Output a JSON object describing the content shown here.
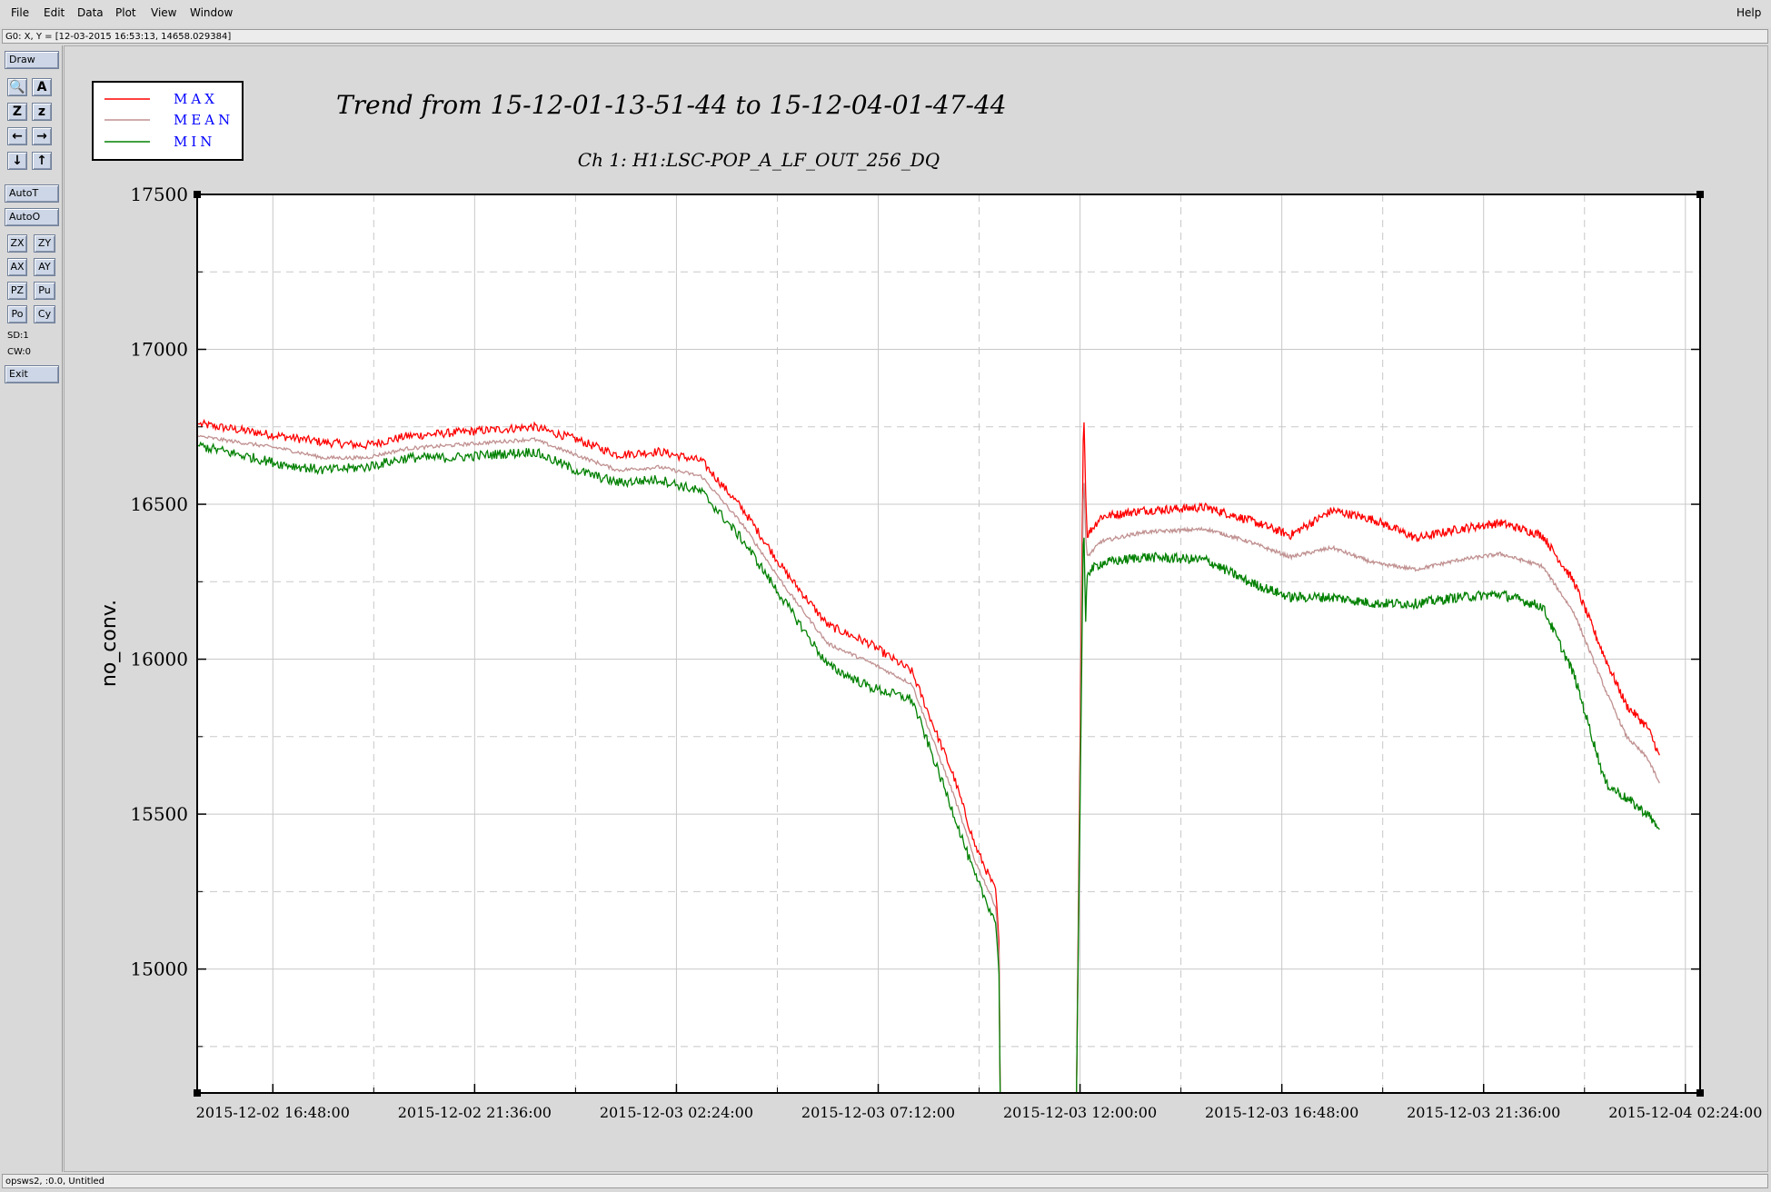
{
  "menu": {
    "left": [
      "File",
      "Edit",
      "Data",
      "Plot",
      "View",
      "Window"
    ],
    "help": "Help"
  },
  "coord_readout": "G0: X, Y = [12-03-2015 16:53:13, 14658.029384]",
  "toolbar": {
    "draw": "Draw",
    "icon_buttons": [
      {
        "name": "zoom-icon",
        "glyph": "🔍"
      },
      {
        "name": "text-tool-icon",
        "glyph": "A"
      },
      {
        "name": "zoom-in-icon",
        "glyph": "Z"
      },
      {
        "name": "zoom-out-icon",
        "glyph": "z"
      },
      {
        "name": "arrow-left-icon",
        "glyph": "←"
      },
      {
        "name": "arrow-right-icon",
        "glyph": "→"
      },
      {
        "name": "arrow-down-icon",
        "glyph": "↓"
      },
      {
        "name": "arrow-up-icon",
        "glyph": "↑"
      }
    ],
    "autot": "AutoT",
    "autoo": "AutoO",
    "small_buttons": [
      "ZX",
      "ZY",
      "AX",
      "AY",
      "PZ",
      "Pu",
      "Po",
      "Cy"
    ],
    "sd": "SD:1",
    "cw": "CW:0",
    "exit": "Exit"
  },
  "status": "opsws2, :0.0, Untitled",
  "chart_data": {
    "type": "line",
    "title": "Trend from 15-12-01-13-51-44 to 15-12-04-01-47-44",
    "subtitle": "Ch 1: H1:LSC-POP_A_LF_OUT_256_DQ",
    "ylabel": "no_conv.",
    "xlabel": "",
    "ylim": [
      14600,
      17500
    ],
    "yticks": [
      15000,
      15500,
      16000,
      16500,
      17000,
      17500
    ],
    "xlim": [
      "2015-12-02 15:00:00",
      "2015-12-04 02:45:00"
    ],
    "xticks": [
      "2015-12-02 16:48:00",
      "2015-12-02 21:36:00",
      "2015-12-03 02:24:00",
      "2015-12-03 07:12:00",
      "2015-12-03 12:00:00",
      "2015-12-03 16:48:00",
      "2015-12-03 21:36:00",
      "2015-12-04 02:24:00"
    ],
    "grid": true,
    "legend": "top-left",
    "legend_entries": [
      "MAX",
      "MEAN",
      "MIN"
    ],
    "colors": {
      "MAX": "#ff0000",
      "MEAN": "#c09090",
      "MIN": "#008000",
      "legend_text": "#0000ff"
    },
    "series": [
      {
        "name": "MAX",
        "segments": [
          {
            "x": [
              "2015-12-02 15:00:00",
              "2015-12-02 16:00:00",
              "2015-12-02 17:00:00",
              "2015-12-02 18:00:00",
              "2015-12-02 19:00:00",
              "2015-12-02 20:00:00",
              "2015-12-02 21:00:00",
              "2015-12-02 22:00:00",
              "2015-12-02 23:00:00",
              "2015-12-03 00:00:00",
              "2015-12-03 01:00:00",
              "2015-12-03 02:00:00",
              "2015-12-03 03:00:00",
              "2015-12-03 04:00:00",
              "2015-12-03 05:00:00",
              "2015-12-03 06:00:00",
              "2015-12-03 07:00:00",
              "2015-12-03 08:00:00",
              "2015-12-03 09:00:00",
              "2015-12-03 09:30:00",
              "2015-12-03 10:00:00",
              "2015-12-03 10:05:00",
              "2015-12-03 10:06:00"
            ],
            "y": [
              16760,
              16740,
              16720,
              16700,
              16690,
              16720,
              16730,
              16740,
              16750,
              16710,
              16660,
              16670,
              16640,
              16480,
              16280,
              16110,
              16050,
              15960,
              15620,
              15400,
              15250,
              15060,
              14600
            ]
          },
          {
            "x": [
              "2015-12-03 11:55:00",
              "2015-12-03 12:05:00",
              "2015-12-03 12:08:00",
              "2015-12-03 12:10:00",
              "2015-12-03 12:30:00",
              "2015-12-03 13:30:00",
              "2015-12-03 15:00:00",
              "2015-12-03 16:00:00",
              "2015-12-03 17:00:00",
              "2015-12-03 18:00:00",
              "2015-12-03 19:00:00",
              "2015-12-03 20:00:00",
              "2015-12-03 21:00:00",
              "2015-12-03 22:00:00",
              "2015-12-03 23:00:00",
              "2015-12-03 23:45:00",
              "2015-12-04 00:30:00",
              "2015-12-04 01:00:00",
              "2015-12-04 01:30:00",
              "2015-12-04 01:47:00"
            ],
            "y": [
              14600,
              16830,
              16550,
              16400,
              16460,
              16480,
              16490,
              16450,
              16400,
              16480,
              16450,
              16390,
              16420,
              16440,
              16400,
              16250,
              16000,
              15850,
              15780,
              15690
            ]
          }
        ]
      },
      {
        "name": "MEAN",
        "segments": [
          {
            "x": [
              "2015-12-02 15:00:00",
              "2015-12-02 16:00:00",
              "2015-12-02 17:00:00",
              "2015-12-02 18:00:00",
              "2015-12-02 19:00:00",
              "2015-12-02 20:00:00",
              "2015-12-02 21:00:00",
              "2015-12-02 22:00:00",
              "2015-12-02 23:00:00",
              "2015-12-03 00:00:00",
              "2015-12-03 01:00:00",
              "2015-12-03 02:00:00",
              "2015-12-03 03:00:00",
              "2015-12-03 04:00:00",
              "2015-12-03 05:00:00",
              "2015-12-03 06:00:00",
              "2015-12-03 07:00:00",
              "2015-12-03 08:00:00",
              "2015-12-03 09:00:00",
              "2015-12-03 09:30:00",
              "2015-12-03 10:00:00",
              "2015-12-03 10:05:00",
              "2015-12-03 10:06:00"
            ],
            "y": [
              16720,
              16700,
              16680,
              16650,
              16650,
              16680,
              16690,
              16700,
              16710,
              16660,
              16610,
              16620,
              16590,
              16430,
              16230,
              16050,
              15990,
              15920,
              15560,
              15350,
              15200,
              15020,
              14600
            ]
          },
          {
            "x": [
              "2015-12-03 11:55:00",
              "2015-12-03 12:05:00",
              "2015-12-03 12:08:00",
              "2015-12-03 12:10:00",
              "2015-12-03 12:30:00",
              "2015-12-03 13:30:00",
              "2015-12-03 15:00:00",
              "2015-12-03 16:00:00",
              "2015-12-03 17:00:00",
              "2015-12-03 18:00:00",
              "2015-12-03 19:00:00",
              "2015-12-03 20:00:00",
              "2015-12-03 21:00:00",
              "2015-12-03 22:00:00",
              "2015-12-03 23:00:00",
              "2015-12-03 23:45:00",
              "2015-12-04 00:30:00",
              "2015-12-04 01:00:00",
              "2015-12-04 01:30:00",
              "2015-12-04 01:47:00"
            ],
            "y": [
              14600,
              16620,
              16400,
              16330,
              16380,
              16410,
              16420,
              16380,
              16330,
              16360,
              16310,
              16290,
              16320,
              16340,
              16300,
              16150,
              15900,
              15750,
              15680,
              15600
            ]
          }
        ]
      },
      {
        "name": "MIN",
        "segments": [
          {
            "x": [
              "2015-12-02 15:00:00",
              "2015-12-02 16:00:00",
              "2015-12-02 17:00:00",
              "2015-12-02 18:00:00",
              "2015-12-02 19:00:00",
              "2015-12-02 20:00:00",
              "2015-12-02 21:00:00",
              "2015-12-02 22:00:00",
              "2015-12-02 23:00:00",
              "2015-12-03 00:00:00",
              "2015-12-03 01:00:00",
              "2015-12-03 02:00:00",
              "2015-12-03 03:00:00",
              "2015-12-03 04:00:00",
              "2015-12-03 05:00:00",
              "2015-12-03 06:00:00",
              "2015-12-03 07:00:00",
              "2015-12-03 08:00:00",
              "2015-12-03 09:00:00",
              "2015-12-03 09:30:00",
              "2015-12-03 10:00:00",
              "2015-12-03 10:05:00",
              "2015-12-03 10:06:00"
            ],
            "y": [
              16690,
              16660,
              16630,
              16610,
              16620,
              16650,
              16650,
              16660,
              16670,
              16610,
              16570,
              16580,
              16540,
              16380,
              16180,
              15980,
              15910,
              15870,
              15500,
              15300,
              15150,
              14960,
              14600
            ]
          },
          {
            "x": [
              "2015-12-03 11:55:00",
              "2015-12-03 12:05:00",
              "2015-12-03 12:08:00",
              "2015-12-03 12:10:00",
              "2015-12-03 12:30:00",
              "2015-12-03 13:30:00",
              "2015-12-03 15:00:00",
              "2015-12-03 16:00:00",
              "2015-12-03 17:00:00",
              "2015-12-03 18:00:00",
              "2015-12-03 19:00:00",
              "2015-12-03 20:00:00",
              "2015-12-03 21:00:00",
              "2015-12-03 22:00:00",
              "2015-12-03 23:00:00",
              "2015-12-03 23:45:00",
              "2015-12-04 00:30:00",
              "2015-12-04 01:00:00",
              "2015-12-04 01:30:00",
              "2015-12-04 01:47:00"
            ],
            "y": [
              14600,
              16460,
              16100,
              16280,
              16310,
              16330,
              16320,
              16250,
              16200,
              16200,
              16180,
              16180,
              16200,
              16210,
              16170,
              15950,
              15600,
              15550,
              15500,
              15450
            ]
          }
        ]
      }
    ]
  }
}
